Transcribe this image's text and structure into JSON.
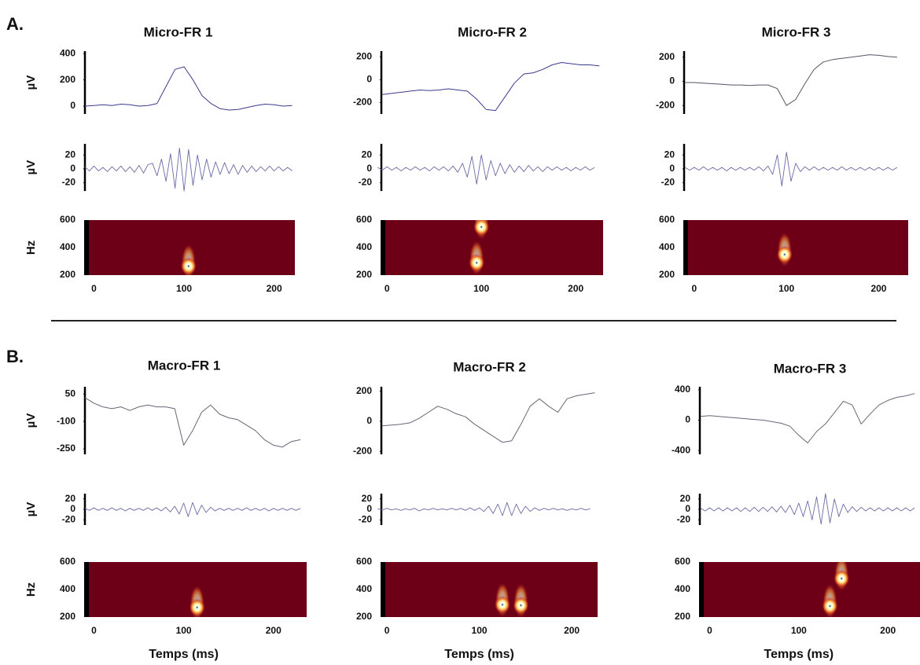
{
  "sections": [
    {
      "label": "A.",
      "row_labels": [
        "µV",
        "µV",
        "Hz"
      ]
    },
    {
      "label": "B.",
      "row_labels": [
        "µV",
        "µV",
        "Hz"
      ]
    }
  ],
  "chart_data": [
    {
      "type": "line",
      "title": "Micro-FR 1",
      "xlim": [
        -10,
        223
      ],
      "xticks": [
        0,
        100,
        200
      ],
      "raw": {
        "color": "#3b3b8f",
        "ylim": [
          -60,
          420
        ],
        "yticks": [
          0,
          200,
          400
        ],
        "x": [
          -10,
          0,
          10,
          20,
          30,
          40,
          50,
          60,
          70,
          80,
          90,
          100,
          110,
          120,
          130,
          140,
          150,
          160,
          170,
          180,
          190,
          200,
          210,
          220
        ],
        "values": [
          0,
          5,
          10,
          5,
          15,
          10,
          0,
          5,
          20,
          150,
          280,
          300,
          200,
          80,
          20,
          -20,
          -30,
          -25,
          -10,
          5,
          15,
          10,
          0,
          5
        ]
      },
      "filtered": {
        "color": "#6a6aa6",
        "ylim": [
          -32,
          36
        ],
        "yticks": [
          20,
          0,
          -20
        ],
        "x": [
          -10,
          -5,
          0,
          5,
          10,
          15,
          20,
          25,
          30,
          35,
          40,
          45,
          50,
          55,
          60,
          65,
          70,
          75,
          80,
          85,
          90,
          95,
          100,
          105,
          110,
          115,
          120,
          125,
          130,
          135,
          140,
          145,
          150,
          155,
          160,
          165,
          170,
          175,
          180,
          185,
          190,
          195,
          200,
          205,
          210,
          215,
          220
        ],
        "values": [
          3,
          -3,
          4,
          -3,
          2,
          -4,
          3,
          -3,
          4,
          -4,
          3,
          -5,
          5,
          -6,
          6,
          8,
          -10,
          14,
          -18,
          22,
          -28,
          30,
          -32,
          28,
          -24,
          20,
          -16,
          14,
          -12,
          10,
          -8,
          9,
          -7,
          6,
          -8,
          5,
          -5,
          4,
          -4,
          3,
          -3,
          4,
          -3,
          3,
          -3,
          2,
          -3
        ]
      },
      "spectrogram": {
        "color": "#6d0016",
        "ylim": [
          200,
          600
        ],
        "yticks": [
          200,
          400,
          600
        ],
        "peaks": [
          {
            "t": 105,
            "f": 265
          }
        ]
      }
    },
    {
      "type": "line",
      "title": "Micro-FR 2",
      "xlim": [
        -6,
        229
      ],
      "xticks": [
        0,
        100,
        200
      ],
      "raw": {
        "color": "#3b3b8f",
        "ylim": [
          -300,
          250
        ],
        "yticks": [
          200,
          0,
          -200
        ],
        "x": [
          -5,
          5,
          15,
          25,
          35,
          45,
          55,
          65,
          75,
          85,
          95,
          105,
          115,
          125,
          135,
          145,
          155,
          165,
          175,
          185,
          195,
          205,
          215,
          225
        ],
        "values": [
          -130,
          -120,
          -110,
          -100,
          -90,
          -95,
          -90,
          -80,
          -90,
          -100,
          -170,
          -260,
          -270,
          -150,
          -30,
          50,
          60,
          90,
          130,
          150,
          140,
          130,
          130,
          120
        ]
      },
      "filtered": {
        "color": "#6a6aa6",
        "ylim": [
          -32,
          36
        ],
        "yticks": [
          20,
          0,
          -20
        ],
        "x": [
          -10,
          -5,
          0,
          5,
          10,
          15,
          20,
          25,
          30,
          35,
          40,
          45,
          50,
          55,
          60,
          65,
          70,
          75,
          80,
          85,
          90,
          95,
          100,
          105,
          110,
          115,
          120,
          125,
          130,
          135,
          140,
          145,
          150,
          155,
          160,
          165,
          170,
          175,
          180,
          185,
          190,
          195,
          200,
          205,
          210,
          215,
          220
        ],
        "values": [
          2,
          -2,
          3,
          -2,
          2,
          -3,
          2,
          -2,
          3,
          -2,
          2,
          -3,
          3,
          -2,
          3,
          -3,
          4,
          -5,
          8,
          -12,
          18,
          -22,
          20,
          -16,
          12,
          -10,
          8,
          -7,
          6,
          -5,
          4,
          -4,
          5,
          -3,
          3,
          -4,
          3,
          -2,
          3,
          -2,
          2,
          -3,
          2,
          -2,
          3,
          -2,
          2
        ]
      },
      "spectrogram": {
        "color": "#6d0016",
        "ylim": [
          200,
          600
        ],
        "yticks": [
          200,
          400,
          600
        ],
        "peaks": [
          {
            "t": 95,
            "f": 290
          },
          {
            "t": 100,
            "f": 550
          }
        ]
      }
    },
    {
      "type": "line",
      "title": "Micro-FR 3",
      "xlim": [
        -11,
        232
      ],
      "xticks": [
        0,
        100,
        200
      ],
      "raw": {
        "color": "#555566",
        "ylim": [
          -270,
          250
        ],
        "yticks": [
          200,
          0,
          -200
        ],
        "x": [
          -10,
          0,
          10,
          20,
          30,
          40,
          50,
          60,
          70,
          80,
          90,
          100,
          110,
          120,
          130,
          140,
          150,
          160,
          170,
          180,
          190,
          200,
          210,
          220
        ],
        "values": [
          -10,
          -10,
          -15,
          -20,
          -25,
          -30,
          -30,
          -35,
          -30,
          -30,
          -60,
          -200,
          -150,
          -20,
          100,
          160,
          180,
          190,
          200,
          210,
          220,
          215,
          205,
          200
        ]
      },
      "filtered": {
        "color": "#6a6aa6",
        "ylim": [
          -32,
          36
        ],
        "yticks": [
          20,
          0,
          -20
        ],
        "x": [
          -10,
          -5,
          0,
          5,
          10,
          15,
          20,
          25,
          30,
          35,
          40,
          45,
          50,
          55,
          60,
          65,
          70,
          75,
          80,
          85,
          90,
          95,
          100,
          105,
          110,
          115,
          120,
          125,
          130,
          135,
          140,
          145,
          150,
          155,
          160,
          165,
          170,
          175,
          180,
          185,
          190,
          195,
          200,
          205,
          210,
          215,
          220
        ],
        "values": [
          2,
          -2,
          2,
          -2,
          3,
          -2,
          2,
          -2,
          2,
          -3,
          2,
          -2,
          2,
          -2,
          2,
          -2,
          3,
          -3,
          4,
          -8,
          20,
          -25,
          24,
          -18,
          8,
          -4,
          3,
          -2,
          3,
          -2,
          2,
          -2,
          2,
          -2,
          3,
          -2,
          2,
          -2,
          2,
          -2,
          2,
          -2,
          2,
          -2,
          2,
          -2,
          2
        ]
      },
      "spectrogram": {
        "color": "#6d0016",
        "ylim": [
          200,
          600
        ],
        "yticks": [
          200,
          400,
          600
        ],
        "peaks": [
          {
            "t": 98,
            "f": 350
          }
        ]
      }
    },
    {
      "type": "line",
      "title": "Macro-FR 1",
      "xlim": [
        -10,
        237
      ],
      "xticks": [
        0,
        100,
        200
      ],
      "xlabel": "Temps (ms)",
      "raw": {
        "color": "#666677",
        "ylim": [
          -280,
          90
        ],
        "yticks": [
          50,
          -100,
          -250
        ],
        "x": [
          -10,
          0,
          10,
          20,
          30,
          40,
          50,
          60,
          70,
          80,
          90,
          100,
          110,
          120,
          130,
          140,
          150,
          160,
          170,
          180,
          190,
          200,
          210,
          220,
          230
        ],
        "values": [
          30,
          0,
          -20,
          -30,
          -20,
          -40,
          -20,
          -10,
          -20,
          -20,
          -30,
          -230,
          -150,
          -50,
          -10,
          -60,
          -80,
          -90,
          -120,
          -150,
          -200,
          -230,
          -240,
          -210,
          -200
        ]
      },
      "filtered": {
        "color": "#6a6aa6",
        "ylim": [
          -30,
          30
        ],
        "yticks": [
          20,
          0,
          -20
        ],
        "x": [
          -10,
          -5,
          0,
          5,
          10,
          15,
          20,
          25,
          30,
          35,
          40,
          45,
          50,
          55,
          60,
          65,
          70,
          75,
          80,
          85,
          90,
          95,
          100,
          105,
          110,
          115,
          120,
          125,
          130,
          135,
          140,
          145,
          150,
          155,
          160,
          165,
          170,
          175,
          180,
          185,
          190,
          195,
          200,
          205,
          210,
          215,
          220,
          225,
          230
        ],
        "values": [
          2,
          -2,
          3,
          -2,
          2,
          -2,
          3,
          -2,
          2,
          -3,
          2,
          -2,
          2,
          -2,
          3,
          -2,
          3,
          -3,
          4,
          -5,
          6,
          -9,
          12,
          -14,
          13,
          -10,
          8,
          -6,
          4,
          -3,
          2,
          -2,
          2,
          -2,
          2,
          -2,
          3,
          -2,
          2,
          -2,
          2,
          -3,
          2,
          -2,
          2,
          -2,
          2,
          -2,
          2
        ]
      },
      "spectrogram": {
        "color": "#6d0016",
        "ylim": [
          200,
          600
        ],
        "yticks": [
          200,
          400,
          600
        ],
        "peaks": [
          {
            "t": 115,
            "f": 270
          }
        ]
      }
    },
    {
      "type": "line",
      "title": "Macro-FR 2",
      "xlim": [
        -6,
        228
      ],
      "xticks": [
        0,
        100,
        200
      ],
      "xlabel": "Temps (ms)",
      "raw": {
        "color": "#666677",
        "ylim": [
          -220,
          230
        ],
        "yticks": [
          200,
          0,
          -200
        ],
        "x": [
          -5,
          5,
          15,
          25,
          35,
          45,
          55,
          65,
          75,
          85,
          95,
          105,
          115,
          125,
          135,
          145,
          155,
          165,
          175,
          185,
          195,
          205,
          215,
          225
        ],
        "values": [
          -30,
          -25,
          -20,
          -10,
          20,
          60,
          100,
          80,
          50,
          30,
          -20,
          -60,
          -100,
          -140,
          -130,
          -20,
          100,
          150,
          100,
          60,
          150,
          170,
          180,
          190
        ]
      },
      "filtered": {
        "color": "#6a6aa6",
        "ylim": [
          -30,
          30
        ],
        "yticks": [
          20,
          0,
          -20
        ],
        "x": [
          -10,
          -5,
          0,
          5,
          10,
          15,
          20,
          25,
          30,
          35,
          40,
          45,
          50,
          55,
          60,
          65,
          70,
          75,
          80,
          85,
          90,
          95,
          100,
          105,
          110,
          115,
          120,
          125,
          130,
          135,
          140,
          145,
          150,
          155,
          160,
          165,
          170,
          175,
          180,
          185,
          190,
          195,
          200,
          205,
          210,
          215,
          220
        ],
        "values": [
          1,
          -1,
          2,
          -1,
          1,
          -2,
          1,
          -1,
          2,
          -3,
          1,
          -1,
          2,
          -1,
          1,
          -1,
          2,
          -1,
          2,
          -2,
          3,
          -2,
          3,
          -4,
          6,
          -8,
          10,
          -12,
          13,
          -12,
          10,
          -8,
          6,
          -4,
          3,
          -2,
          2,
          -1,
          2,
          -1,
          1,
          -2,
          1,
          -1,
          2,
          -1,
          1
        ]
      },
      "spectrogram": {
        "color": "#6d0016",
        "ylim": [
          200,
          600
        ],
        "yticks": [
          200,
          400,
          600
        ],
        "peaks": [
          {
            "t": 125,
            "f": 290
          },
          {
            "t": 145,
            "f": 285
          }
        ]
      }
    },
    {
      "type": "line",
      "title": "Macro-FR 3",
      "xlim": [
        -11,
        236
      ],
      "xticks": [
        0,
        100,
        200
      ],
      "xlabel": "Temps (ms)",
      "raw": {
        "color": "#666677",
        "ylim": [
          -450,
          440
        ],
        "yticks": [
          400,
          0,
          -400
        ],
        "x": [
          -10,
          0,
          10,
          20,
          30,
          40,
          50,
          60,
          70,
          80,
          90,
          100,
          110,
          120,
          130,
          140,
          150,
          160,
          170,
          180,
          190,
          200,
          210,
          220,
          230
        ],
        "values": [
          50,
          60,
          50,
          40,
          30,
          20,
          10,
          0,
          -20,
          -40,
          -80,
          -200,
          -300,
          -150,
          -50,
          100,
          250,
          200,
          -50,
          80,
          200,
          260,
          300,
          320,
          350
        ]
      },
      "filtered": {
        "color": "#6a6aa6",
        "ylim": [
          -30,
          30
        ],
        "yticks": [
          20,
          0,
          -20
        ],
        "x": [
          -10,
          -5,
          0,
          5,
          10,
          15,
          20,
          25,
          30,
          35,
          40,
          45,
          50,
          55,
          60,
          65,
          70,
          75,
          80,
          85,
          90,
          95,
          100,
          105,
          110,
          115,
          120,
          125,
          130,
          135,
          140,
          145,
          150,
          155,
          160,
          165,
          170,
          175,
          180,
          185,
          190,
          195,
          200,
          205,
          210,
          215,
          220,
          225,
          230
        ],
        "values": [
          2,
          -3,
          3,
          -3,
          3,
          -3,
          3,
          -3,
          3,
          -4,
          3,
          -4,
          4,
          -4,
          4,
          -4,
          5,
          -5,
          6,
          -6,
          8,
          -10,
          12,
          -14,
          16,
          -20,
          24,
          -28,
          30,
          -26,
          20,
          -14,
          10,
          -6,
          5,
          -4,
          4,
          -3,
          3,
          -3,
          3,
          -3,
          3,
          -3,
          3,
          -3,
          3,
          -3,
          3
        ]
      },
      "spectrogram": {
        "color": "#6d0016",
        "ylim": [
          200,
          600
        ],
        "yticks": [
          200,
          400,
          600
        ],
        "peaks": [
          {
            "t": 135,
            "f": 280
          },
          {
            "t": 148,
            "f": 480
          }
        ]
      }
    }
  ]
}
